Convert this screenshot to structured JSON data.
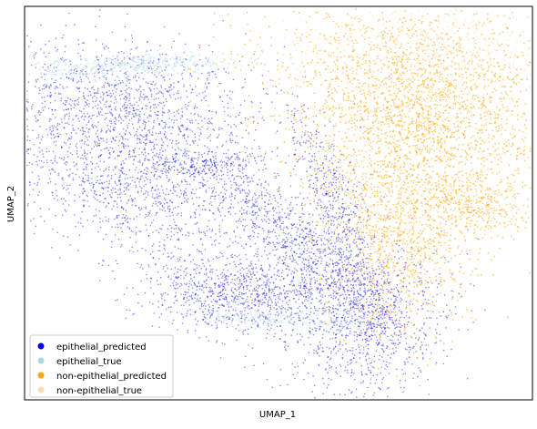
{
  "chart_data": {
    "type": "scatter",
    "title": "",
    "xlabel": "UMAP_1",
    "ylabel": "UMAP_2",
    "x_ticks": "none",
    "y_ticks": "none",
    "grid": false,
    "legend_position": "bottom-left",
    "series": [
      {
        "name": "epithelial_predicted",
        "color": "#0000ee"
      },
      {
        "name": "epithelial_true",
        "color": "#add8e6"
      },
      {
        "name": "non-epithelial_predicted",
        "color": "#ffa500"
      },
      {
        "name": "non-epithelial_true",
        "color": "#ffdab9"
      }
    ],
    "note_values_approximate": false
  }
}
